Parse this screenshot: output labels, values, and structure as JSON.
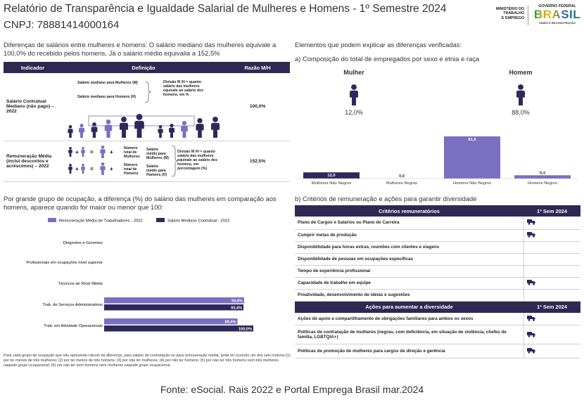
{
  "header": {
    "title": "Relatório de Transparência e Igualdade Salarial de Mulheres e Homens - 1º Semestre 2024",
    "cnpj": "CNPJ: 78881414000164",
    "ministry": [
      "MINISTÉRIO DO",
      "TRABALHO",
      "E EMPREGO"
    ],
    "government": {
      "top": "GOVERNO FEDERAL",
      "name": "BRASIL",
      "motto": "UNIÃO E RECONSTRUÇÃO"
    }
  },
  "intro": "Diferenças de salários entre mulheres e homens: O salário mediano das mulheres equivale a 100,0% do recebido pelos homens. Já o salário médio equivalia a 152,5%",
  "indicator_table": {
    "columns": [
      "Indicador",
      "Definição",
      "Razão M/H"
    ],
    "rows": [
      {
        "indicator": "Salário Contratual Mediano (não pago) – 2022",
        "definition": [
          "Salário mediano para Mulheres (M)",
          "Salário mediano para Homens (H)",
          "Divisão M /H = quanto salário das mulheres equivale ao salário dos homens, em %"
        ],
        "ratio": "100,0%"
      },
      {
        "indicator": "Remuneração Média (inclui descontos e acréscimos) – 2022",
        "definition": [
          "Número total de Mulheres",
          "Salário médio para Mulheres (M)",
          "Número total de Homens",
          "Salário médio para Homens (H)",
          "Divisão M /H = quanto salário das mulheres equivale ao salário dos homens, em porcentagem (%)"
        ],
        "ratio": "152,5%"
      }
    ]
  },
  "occupation_text": "Por grande grupo de ocupação, a diferença (%) do salário das mulheres em comparação aos homens, aparece quando for maior ou menor que 100:",
  "footnote": "Para cada grupo de ocupação que não apresenta cálculo da diferença, para salário de contratação ou para remuneração média, pode ter ocorrido um dos seis motivos:(1) por ter menos de três mulheres; (2) por ter menos de três homens; (3) por não ter mulheres; (4) por não ter homens; (5) por não ter três homens nem três mulheres naquele grupo ocupacional; (6) por não ter nem homens nem mulheres naquele grupo ocupacional.",
  "explain_title": "Elementos que podem explicar as diferenças verificadas:",
  "composition_title": "a) Composição do total de empregados por sexo e etnia e raça",
  "gender_summary": [
    {
      "label": "Mulher",
      "share": "12,0%",
      "color": "#2d2a5a"
    },
    {
      "label": "Homem",
      "share": "88,0%",
      "color": "#2d2a5a"
    }
  ],
  "chart_data": [
    {
      "type": "hbar",
      "categories": [
        "Dirigentes e Gerentes",
        "Profissionais em ocupações nível superior",
        "Técnicos de Nível Médio",
        "Trab. de Serviços Administrativos",
        "Trab. em Atividade Operacionais"
      ],
      "series": [
        {
          "name": "Remuneração Média de Trabalhadores - 2022",
          "color": "#7a6fc2",
          "values": [
            null,
            null,
            null,
            93.8,
            89.4
          ],
          "value_labels": [
            null,
            null,
            null,
            "93,8%",
            "89,4%"
          ]
        },
        {
          "name": "Salário Mediano Contratual - 2022",
          "color": "#2d2a5a",
          "values": [
            null,
            null,
            null,
            93.4,
            100.0
          ],
          "value_labels": [
            null,
            null,
            null,
            "93,4%",
            "100,0%"
          ]
        }
      ]
    },
    {
      "type": "bar",
      "categories": [
        "Mulheres Não Negros",
        "Mulheres Negras",
        "Homens Não Negros",
        "Homens Negros"
      ],
      "values": [
        12.0,
        0.0,
        81.6,
        6.4
      ],
      "value_labels": [
        "12,0",
        "0,0",
        "81,6",
        "6,4"
      ],
      "colors": [
        "#2d2a5a",
        "#7a6fc2",
        "#7a6fc2",
        "#7a6fc2"
      ]
    }
  ],
  "criteria_title": "b) Critérios de remuneração e ações para garantir diversidade",
  "criteria_table": {
    "columns": [
      "Critérios remuneratórios",
      "1º Sem 2024"
    ],
    "rows": [
      {
        "text": "Plano de Cargos e Salários ou Plano de Carreira",
        "checked": true
      },
      {
        "text": "Cumprir metas de produção",
        "checked": true
      },
      {
        "text": "Disponibilidade para horas extras, reuniões com clientes e viagens",
        "checked": false
      },
      {
        "text": "Disponibilidade de pessoas em ocupações específicas",
        "checked": false
      },
      {
        "text": "Tempo de experiência profissional",
        "checked": false
      },
      {
        "text": "Capacidade de trabalho em equipe",
        "checked": true
      },
      {
        "text": "Proatividade, desenvolvimento de ideias e sugestões",
        "checked": false
      }
    ]
  },
  "actions_table": {
    "columns": [
      "Ações para aumentar a diversidade",
      "1º Sem 2024"
    ],
    "rows": [
      {
        "text": "Ações de apoio a compartilhamento de obrigações familiares para ambos os sexos",
        "checked": true
      },
      {
        "text": "Políticas de contratação de mulheres (negras, com deficiência, em situação de violência, chefes de família, LGBTQIA+)",
        "checked": true
      },
      {
        "text": "Políticas de promoção de mulheres para cargos de direção e gerência",
        "checked": true
      }
    ]
  },
  "source": "Fonte: eSocial. Rais 2022 e Portal Emprega Brasil mar.2024"
}
